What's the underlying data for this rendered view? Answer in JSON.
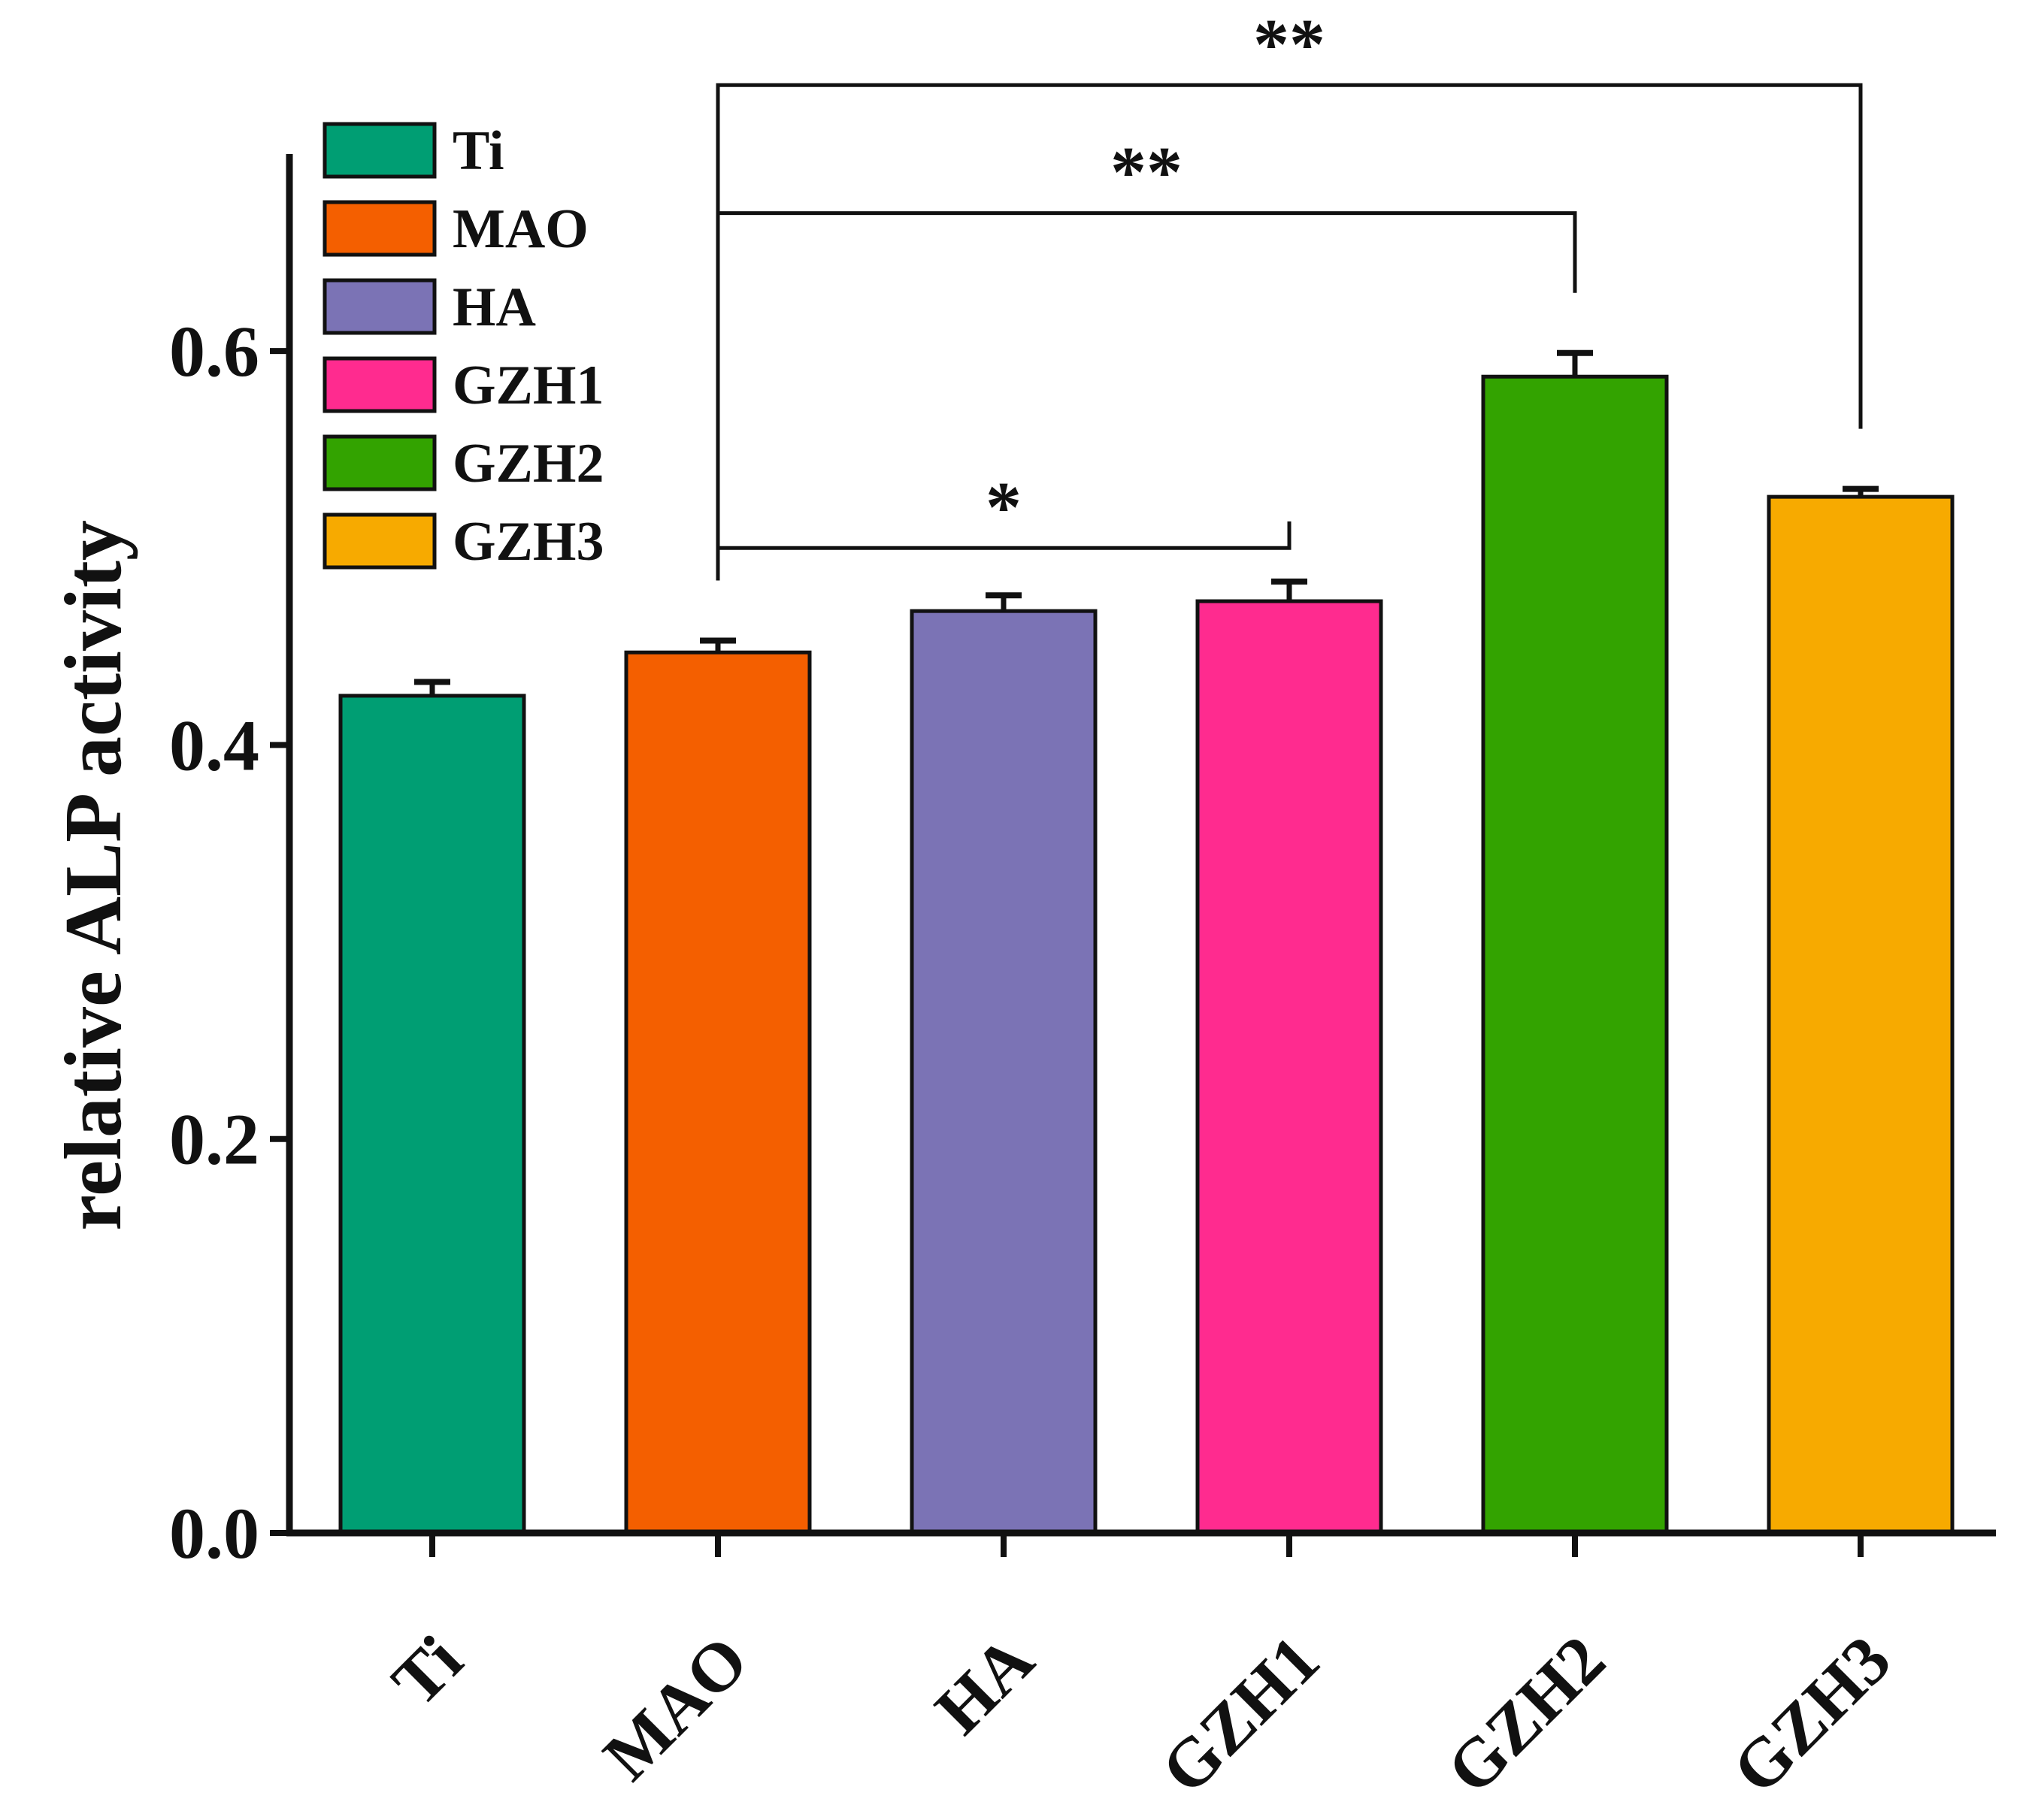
{
  "chart_data": {
    "type": "bar",
    "title": "",
    "xlabel": "",
    "ylabel": "relative ALP activity",
    "categories": [
      "Ti",
      "MAO",
      "HA",
      "GZH1",
      "GZH2",
      "GZH3"
    ],
    "values": [
      0.425,
      0.447,
      0.468,
      0.473,
      0.587,
      0.526
    ],
    "errors": [
      0.007,
      0.006,
      0.008,
      0.01,
      0.012,
      0.004
    ],
    "colors": [
      "#009E73",
      "#F45F00",
      "#7B73B5",
      "#FF2B8F",
      "#33A300",
      "#F7AA00"
    ],
    "ylim": [
      0,
      0.7
    ],
    "yticks": [
      0.0,
      0.2,
      0.4,
      0.6
    ],
    "ytick_labels": [
      "0.0",
      "0.2",
      "0.4",
      "0.6"
    ],
    "legend": {
      "placement": "top-left",
      "entries": [
        "Ti",
        "MAO",
        "HA",
        "GZH1",
        "GZH2",
        "GZH3"
      ]
    },
    "significance": [
      {
        "from": "MAO",
        "to": "GZH1",
        "label": "*",
        "level": 0.5
      },
      {
        "from": "MAO",
        "to": "GZH2",
        "label": "**",
        "level": 0.67
      },
      {
        "from": "MAO",
        "to": "GZH3",
        "label": "**",
        "level": 0.735
      }
    ],
    "grid": false
  }
}
